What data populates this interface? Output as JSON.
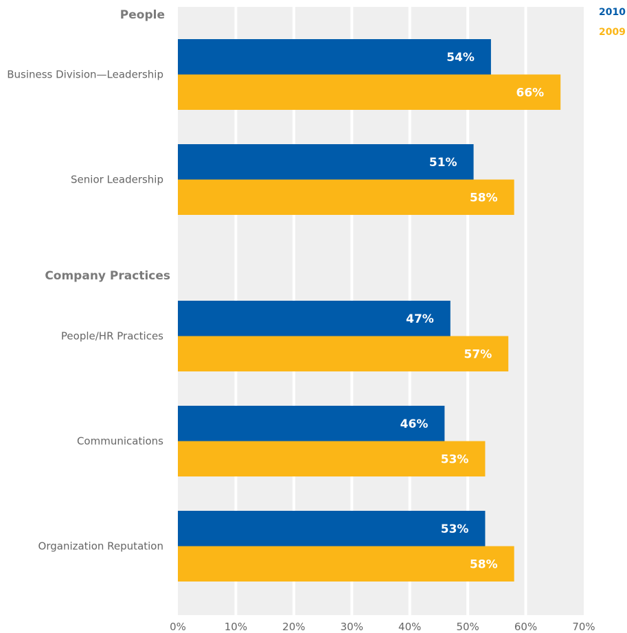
{
  "chart_data": {
    "type": "bar",
    "orientation": "horizontal",
    "groups": [
      {
        "label": "People",
        "categories": [
          "Business Division—Leadership",
          "Senior Leadership"
        ]
      },
      {
        "label": "Company Practices",
        "categories": [
          "People/HR Practices",
          "Communications",
          "Organization Reputation"
        ]
      }
    ],
    "categories": [
      "Business Division—Leadership",
      "Senior Leadership",
      "People/HR Practices",
      "Communications",
      "Organization Reputation"
    ],
    "series": [
      {
        "name": "2010",
        "color": "#005baa",
        "values": [
          54,
          51,
          47,
          46,
          53
        ],
        "labels": [
          "54%",
          "51%",
          "47%",
          "46%",
          "53%"
        ]
      },
      {
        "name": "2009",
        "color": "#fbb617",
        "values": [
          66,
          58,
          57,
          53,
          58
        ],
        "labels": [
          "66%",
          "58%",
          "57%",
          "53%",
          "58%"
        ]
      }
    ],
    "xlim": [
      0,
      70
    ],
    "xticks": [
      "0%",
      "10%",
      "20%",
      "30%",
      "40%",
      "50%",
      "60%",
      "70%"
    ],
    "grid": true,
    "legend_position": "top-right",
    "plot_background": "#efefef",
    "grid_color": "#ffffff"
  }
}
